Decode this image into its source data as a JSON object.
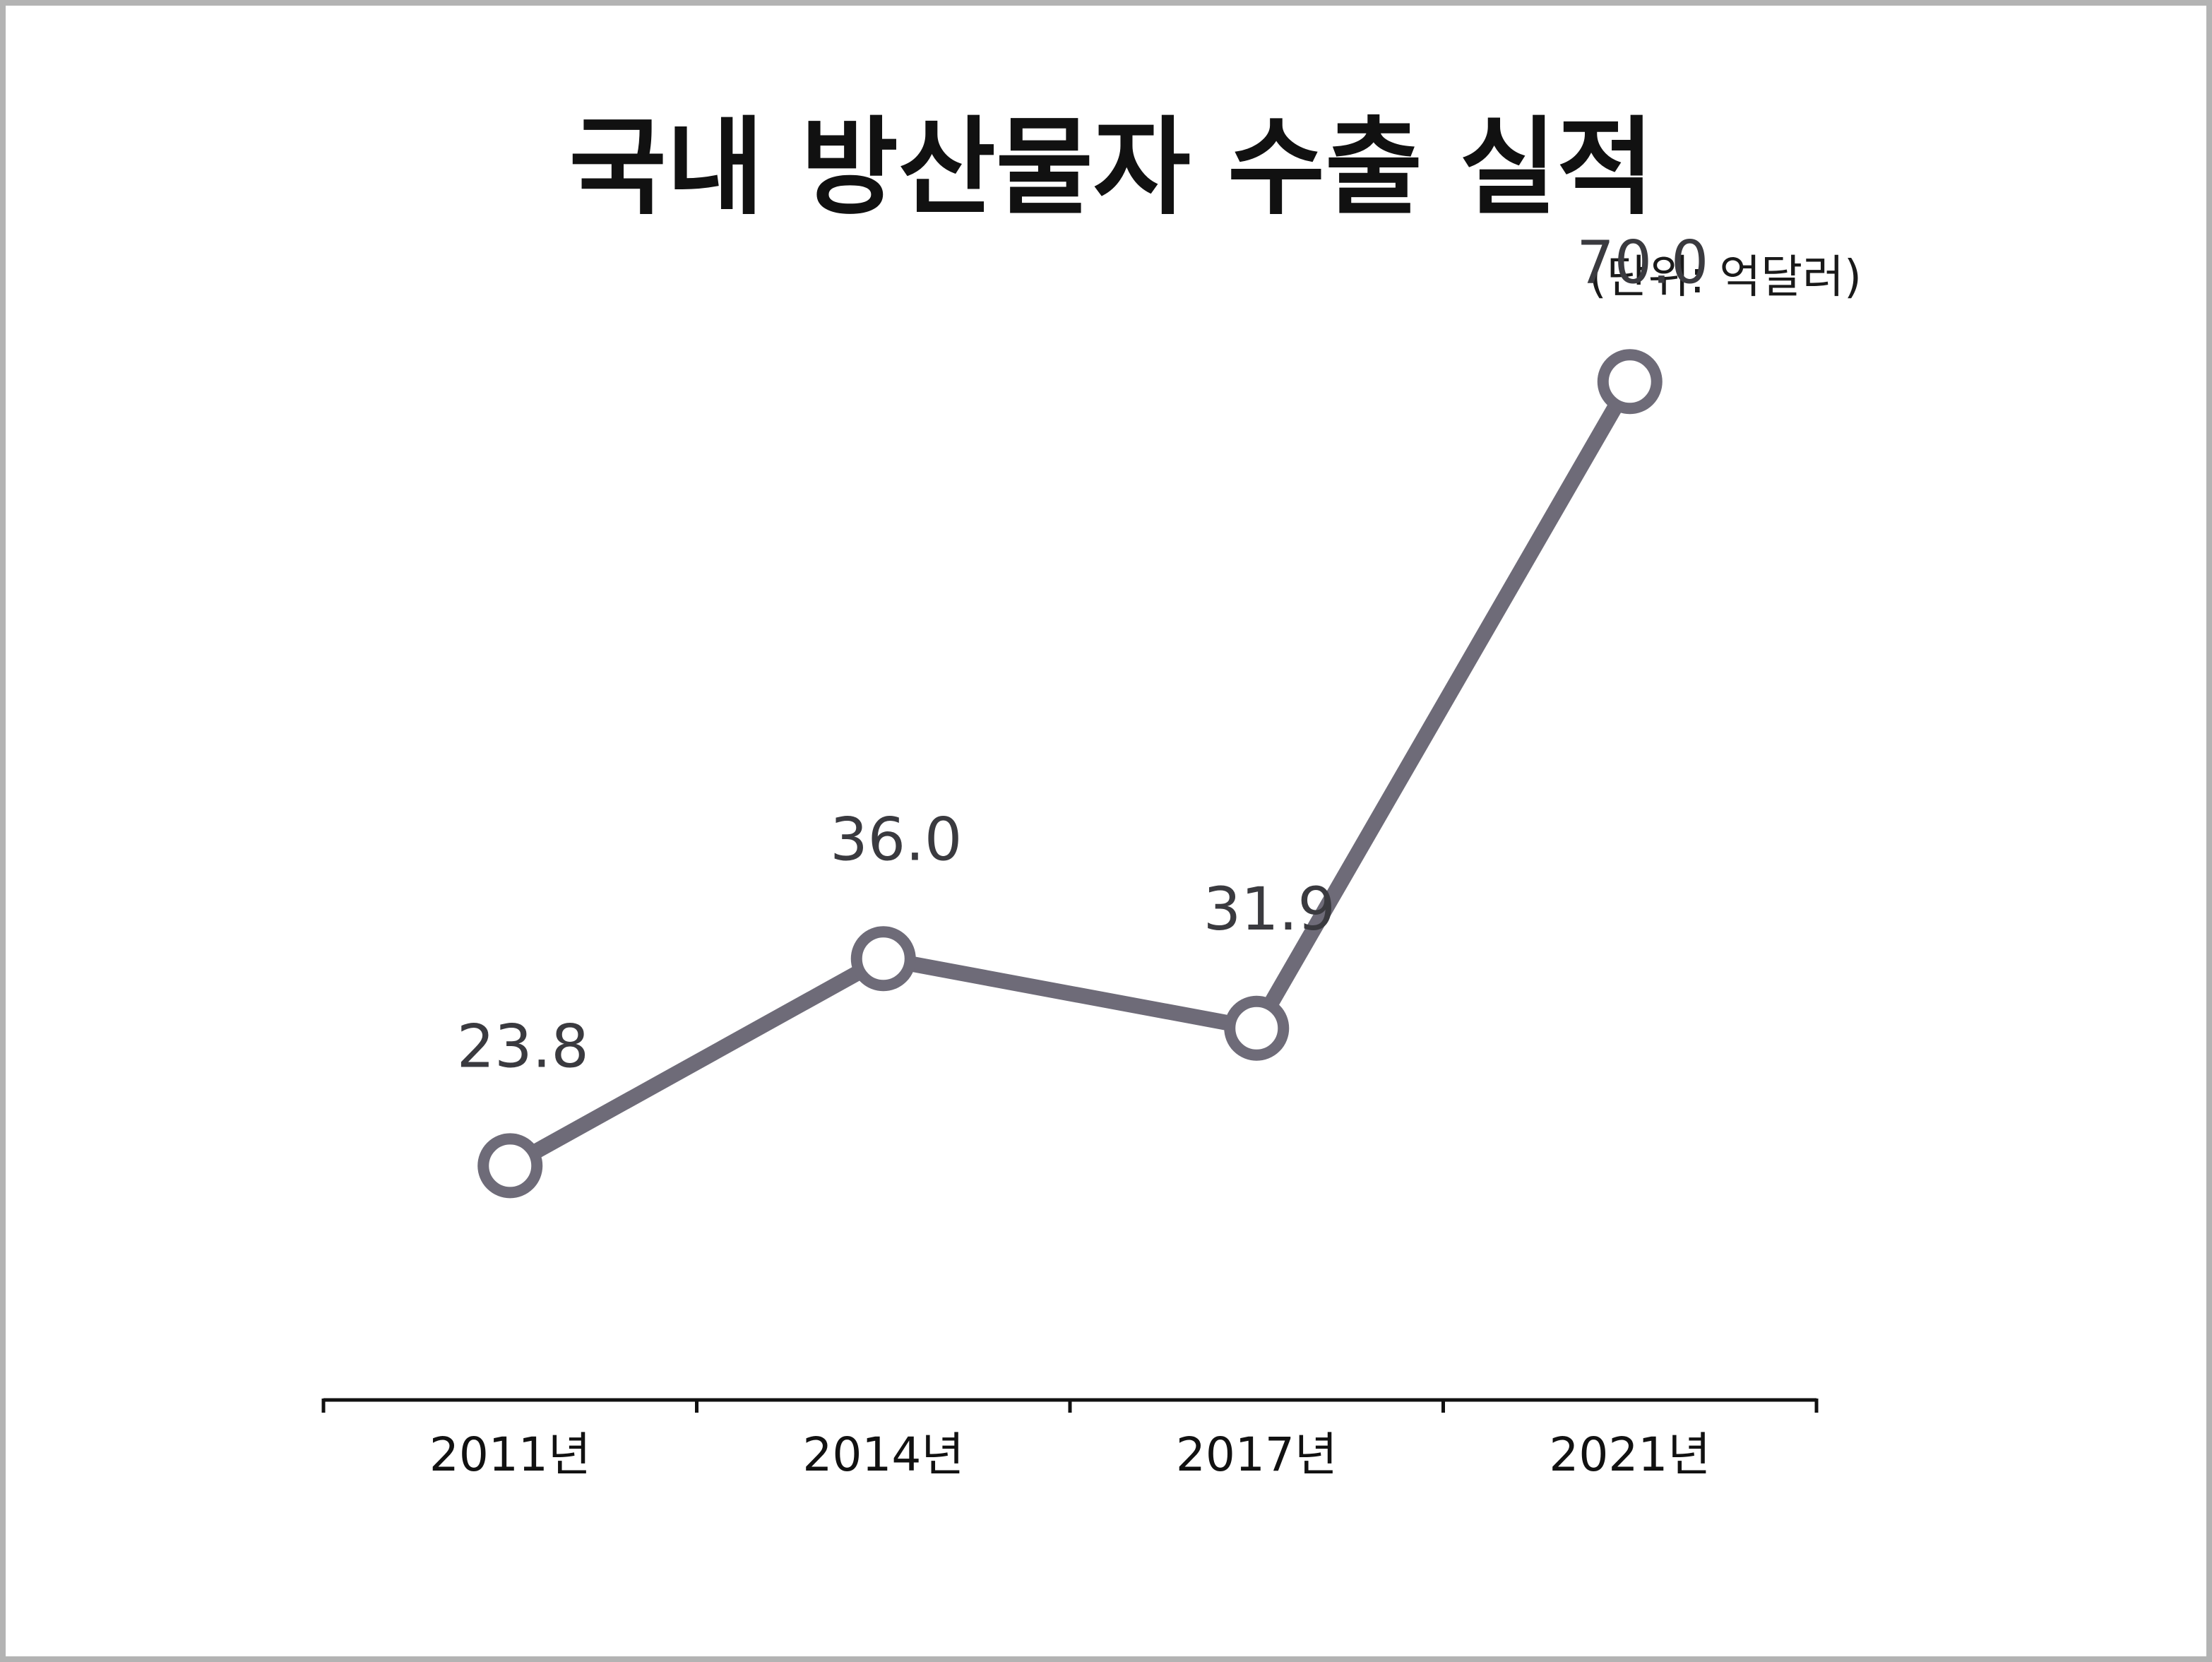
{
  "chart_data": {
    "type": "line",
    "title": "국내 방산물자 수출 실적",
    "unit": "(단위: 억달러)",
    "categories": [
      "2011년",
      "2014년",
      "2017년",
      "2021년"
    ],
    "series": [
      {
        "values": [
          23.8,
          36.0,
          31.9,
          70.0
        ]
      }
    ],
    "data_labels": [
      "23.8",
      "36.0",
      "31.9",
      "70.0"
    ],
    "ylim": [
      10,
      80
    ],
    "grid": false,
    "legend": "none",
    "colors": {
      "line": "#6e6b78",
      "marker_fill": "#ffffff",
      "axis": "#111111"
    }
  }
}
